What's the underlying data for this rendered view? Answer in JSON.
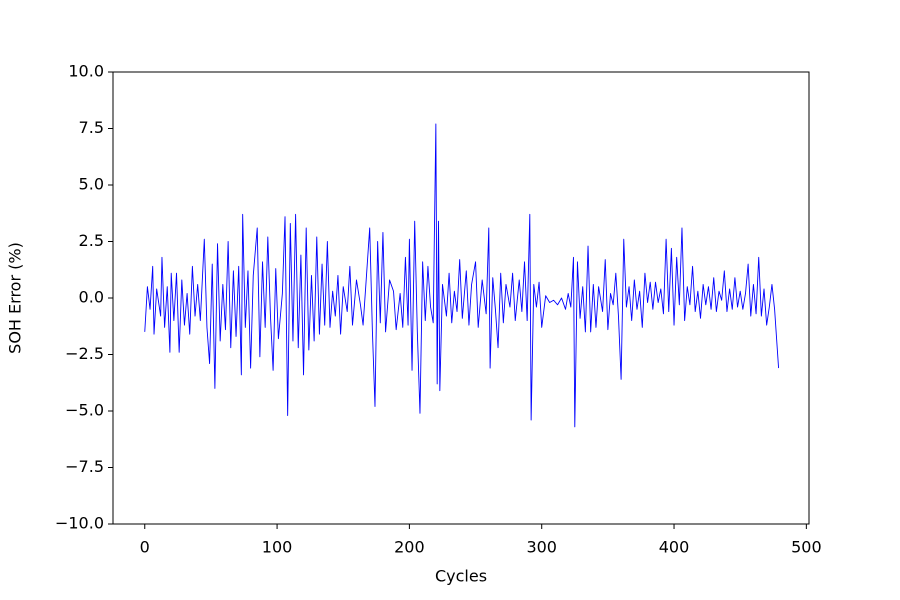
{
  "chart_data": {
    "type": "line",
    "x_label": "Cycles",
    "y_label": "SOH Error (%)",
    "color": "#0000ff",
    "grid": false,
    "xlim": [
      -24,
      502
    ],
    "ylim": [
      -10,
      10
    ],
    "xticks": [
      0,
      100,
      200,
      300,
      400,
      500
    ],
    "yticks": [
      {
        "value": -10,
        "label": "−10.0"
      },
      {
        "value": -7.5,
        "label": "−7.5"
      },
      {
        "value": -5,
        "label": "−5.0"
      },
      {
        "value": -2.5,
        "label": "−2.5"
      },
      {
        "value": 0,
        "label": "0.0"
      },
      {
        "value": 2.5,
        "label": "2.5"
      },
      {
        "value": 5,
        "label": "5.0"
      },
      {
        "value": 7.5,
        "label": "7.5"
      },
      {
        "value": 10,
        "label": "10.0"
      }
    ],
    "x": [
      0,
      2,
      4,
      6,
      7,
      9,
      12,
      13,
      15,
      17,
      19,
      20,
      22,
      24,
      26,
      28,
      30,
      32,
      34,
      36,
      38,
      40,
      42,
      45,
      47,
      49,
      51,
      53,
      55,
      57,
      59,
      61,
      63,
      65,
      67,
      69,
      71,
      73,
      74,
      76,
      78,
      80,
      82,
      85,
      87,
      89,
      91,
      93,
      95,
      97,
      99,
      101,
      104,
      106,
      108,
      110,
      112,
      114,
      116,
      118,
      120,
      122,
      124,
      126,
      128,
      130,
      132,
      134,
      136,
      138,
      140,
      142,
      144,
      146,
      148,
      150,
      153,
      155,
      157,
      160,
      163,
      165,
      167,
      170,
      172,
      174,
      176,
      178,
      180,
      182,
      185,
      188,
      190,
      193,
      195,
      197,
      199,
      200,
      202,
      204,
      206,
      208,
      210,
      212,
      214,
      216,
      218,
      220,
      221,
      222,
      223,
      225,
      228,
      230,
      232,
      234,
      236,
      238,
      240,
      243,
      245,
      247,
      250,
      252,
      255,
      258,
      260,
      261,
      263,
      265,
      267,
      269,
      271,
      273,
      276,
      278,
      280,
      283,
      285,
      287,
      289,
      291,
      292,
      294,
      296,
      298,
      300,
      303,
      306,
      309,
      312,
      315,
      318,
      320,
      322,
      324,
      325,
      327,
      329,
      331,
      333,
      335,
      337,
      339,
      341,
      343,
      346,
      348,
      350,
      352,
      354,
      356,
      358,
      360,
      362,
      364,
      366,
      368,
      370,
      372,
      374,
      376,
      378,
      380,
      382,
      384,
      386,
      388,
      390,
      392,
      394,
      396,
      398,
      400,
      402,
      404,
      406,
      408,
      410,
      412,
      414,
      416,
      418,
      420,
      422,
      424,
      426,
      428,
      430,
      432,
      434,
      436,
      438,
      440,
      442,
      444,
      446,
      448,
      450,
      452,
      454,
      456,
      458,
      460,
      462,
      464,
      466,
      468,
      470,
      472,
      474,
      476,
      479
    ],
    "values": [
      -1.5,
      0.5,
      -0.5,
      1.4,
      -1.6,
      0.4,
      -0.8,
      1.8,
      -1.3,
      0.5,
      -2.4,
      1.1,
      -1.0,
      1.1,
      -2.4,
      0.8,
      -1.2,
      0.2,
      -1.6,
      1.4,
      -0.8,
      0.6,
      -1.0,
      2.6,
      -1.3,
      -2.9,
      1.5,
      -4.0,
      2.4,
      -1.9,
      0.6,
      -1.4,
      2.5,
      -2.2,
      1.2,
      -1.7,
      1.4,
      -3.4,
      3.7,
      -1.3,
      1.2,
      -3.1,
      1.0,
      3.1,
      -2.6,
      1.6,
      -1.3,
      2.7,
      -0.8,
      -3.2,
      1.3,
      -1.8,
      0.2,
      3.6,
      -5.2,
      3.3,
      -1.9,
      3.7,
      -2.2,
      1.9,
      -3.4,
      3.1,
      -2.3,
      1.0,
      -1.9,
      2.7,
      -1.6,
      1.5,
      -1.2,
      2.5,
      -1.3,
      0.3,
      -0.8,
      1.0,
      -1.6,
      0.5,
      -0.6,
      1.4,
      -1.2,
      0.8,
      -0.3,
      -1.2,
      0.5,
      3.1,
      -1.4,
      -4.8,
      2.5,
      -1.1,
      2.9,
      -1.5,
      0.8,
      0.3,
      -1.4,
      0.2,
      -1.3,
      1.8,
      -1.2,
      2.6,
      -3.2,
      3.4,
      -1.5,
      -5.1,
      1.6,
      -1.0,
      1.4,
      -0.4,
      -1.1,
      7.7,
      -3.8,
      3.4,
      -4.1,
      0.6,
      -0.8,
      1.1,
      -1.1,
      0.3,
      -0.6,
      1.7,
      -0.9,
      1.2,
      -1.2,
      0.6,
      1.6,
      -1.3,
      0.8,
      -0.7,
      3.1,
      -3.1,
      0.9,
      -0.5,
      -2.2,
      1.1,
      -1.1,
      0.6,
      -0.4,
      1.1,
      -1.0,
      0.8,
      -0.6,
      1.6,
      -1.0,
      3.7,
      -5.4,
      0.6,
      -0.4,
      0.7,
      -1.3,
      0.1,
      -0.2,
      -0.1,
      -0.3,
      0.0,
      -0.5,
      0.2,
      -0.4,
      1.8,
      -5.7,
      1.6,
      -0.9,
      0.5,
      -1.5,
      2.3,
      -1.5,
      0.6,
      -1.3,
      0.5,
      -0.6,
      1.7,
      -1.4,
      0.2,
      -0.3,
      1.1,
      -0.8,
      -3.6,
      2.6,
      -0.4,
      0.5,
      -1.0,
      0.8,
      -0.5,
      0.3,
      -1.3,
      1.1,
      -0.2,
      0.7,
      -0.5,
      0.7,
      -0.2,
      0.4,
      -0.7,
      2.6,
      -0.6,
      2.2,
      -1.2,
      1.8,
      -0.3,
      3.1,
      -1.0,
      0.5,
      -0.3,
      1.4,
      -0.6,
      0.3,
      -0.9,
      0.6,
      -0.3,
      0.5,
      -0.5,
      0.9,
      -0.6,
      0.3,
      -0.1,
      1.2,
      -0.6,
      0.4,
      -0.5,
      0.9,
      -0.4,
      0.3,
      -0.5,
      0.2,
      1.5,
      -0.8,
      0.6,
      -0.7,
      1.8,
      -0.8,
      0.4,
      -1.2,
      -0.4,
      0.6,
      -0.5,
      -3.1
    ]
  }
}
